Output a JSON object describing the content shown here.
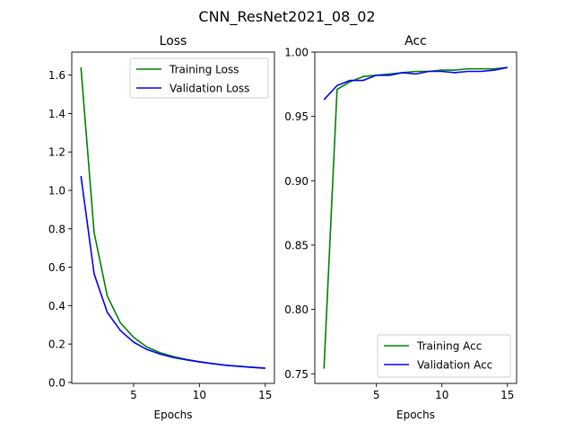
{
  "suptitle": "CNN_ResNet2021_08_02",
  "colors": {
    "training": "#008000",
    "validation": "#0000ff"
  },
  "chart_data": [
    {
      "type": "line",
      "title": "Loss",
      "xlabel": "Epochs",
      "ylabel": "",
      "xlim": [
        0.3,
        15.7
      ],
      "ylim": [
        -0.005,
        1.72
      ],
      "xticks": [
        5,
        10,
        15
      ],
      "yticks": [
        0.0,
        0.2,
        0.4,
        0.6,
        0.8,
        1.0,
        1.2,
        1.4,
        1.6
      ],
      "ytick_decimals": 1,
      "legend": "top-right",
      "grid": false,
      "x": [
        1,
        2,
        3,
        4,
        5,
        6,
        7,
        8,
        9,
        10,
        11,
        12,
        13,
        14,
        15
      ],
      "series": [
        {
          "name": "Training Loss",
          "color_key": "training",
          "values": [
            1.64,
            0.78,
            0.45,
            0.31,
            0.235,
            0.185,
            0.155,
            0.135,
            0.12,
            0.108,
            0.098,
            0.09,
            0.084,
            0.079,
            0.074
          ]
        },
        {
          "name": "Validation Loss",
          "color_key": "validation",
          "values": [
            1.075,
            0.565,
            0.365,
            0.27,
            0.21,
            0.172,
            0.148,
            0.13,
            0.118,
            0.107,
            0.098,
            0.089,
            0.084,
            0.079,
            0.074
          ]
        }
      ]
    },
    {
      "type": "line",
      "title": "Acc",
      "xlabel": "Epochs",
      "ylabel": "",
      "xlim": [
        0.3,
        15.7
      ],
      "ylim": [
        0.7425,
        1.0
      ],
      "xticks": [
        5,
        10,
        15
      ],
      "yticks": [
        0.75,
        0.8,
        0.85,
        0.9,
        0.95,
        1.0
      ],
      "ytick_decimals": 2,
      "legend": "bottom-right",
      "grid": false,
      "x": [
        1,
        2,
        3,
        4,
        5,
        6,
        7,
        8,
        9,
        10,
        11,
        12,
        13,
        14,
        15
      ],
      "series": [
        {
          "name": "Training Acc",
          "color_key": "training",
          "values": [
            0.754,
            0.971,
            0.977,
            0.981,
            0.982,
            0.983,
            0.984,
            0.985,
            0.985,
            0.986,
            0.986,
            0.987,
            0.987,
            0.987,
            0.988
          ]
        },
        {
          "name": "Validation Acc",
          "color_key": "validation",
          "values": [
            0.963,
            0.974,
            0.978,
            0.978,
            0.982,
            0.982,
            0.984,
            0.983,
            0.985,
            0.985,
            0.984,
            0.985,
            0.985,
            0.986,
            0.988
          ]
        }
      ]
    }
  ]
}
